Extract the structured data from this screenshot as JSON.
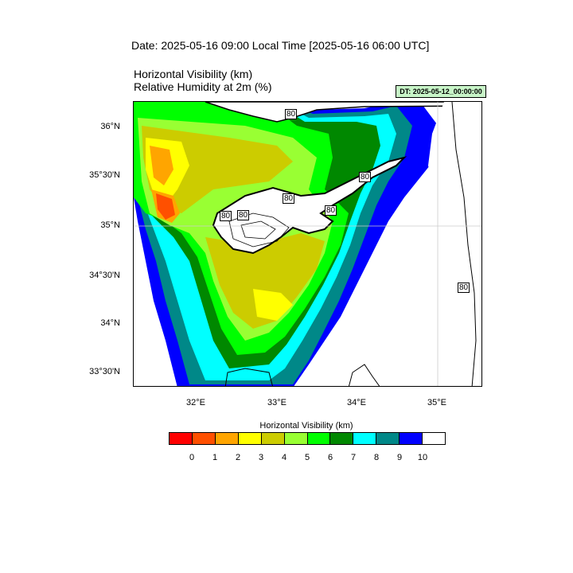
{
  "header": {
    "date_line": "Date: 2025-05-16  09:00 Local Time [2025-05-16  06:00 UTC]",
    "title_line1": "Horizontal Visibility   (km)",
    "title_line2": "Relative Humidity at 2m   (%)",
    "dt_badge": "DT: 2025-05-12_00:00:00"
  },
  "map": {
    "lat_labels": [
      "36°N",
      "35°30'N",
      "35°N",
      "34°30'N",
      "34°N",
      "33°30'N"
    ],
    "lon_labels": [
      "32°E",
      "33°E",
      "34°E",
      "35°E"
    ],
    "contour_labels": [
      "80",
      "80",
      "80",
      "80",
      "80",
      "80",
      "80"
    ]
  },
  "legend": {
    "title": "Horizontal Visibility  (km)",
    "colors": [
      "#ff0000",
      "#ff5000",
      "#ffa500",
      "#ffff00",
      "#cccc00",
      "#99ff33",
      "#00ff00",
      "#008800",
      "#00ffff",
      "#008888",
      "#0000ff",
      "#ffffff"
    ],
    "ticks": [
      "0",
      "1",
      "2",
      "3",
      "4",
      "5",
      "6",
      "7",
      "8",
      "9",
      "10"
    ]
  }
}
